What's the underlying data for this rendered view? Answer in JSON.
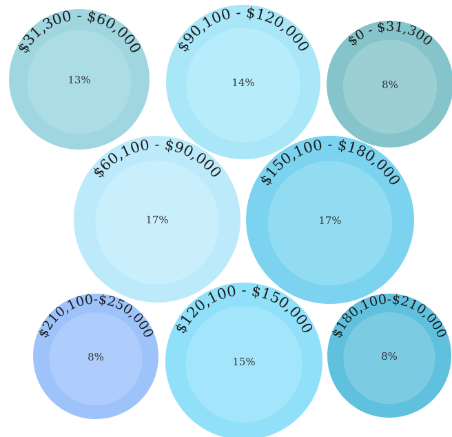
{
  "chart_data": {
    "type": "bubble",
    "title": "",
    "categories": [
      "$31,300 - $60,000",
      "$90,100 - $120,000",
      "$0 - $31,300",
      "$60,100 - $90,000",
      "$150,100 - $180,000",
      "$210,100-$250,000",
      "$120,100 - $150,000",
      "$180,100-$210,000"
    ],
    "values": [
      13,
      14,
      8,
      17,
      17,
      8,
      15,
      8
    ],
    "value_labels": [
      "13%",
      "14%",
      "8%",
      "17%",
      "17%",
      "8%",
      "15%",
      "8%"
    ],
    "unit": "%",
    "colors": {
      "$31,300 - $60,000": {
        "outer": "#9fd6e0",
        "inner": "#acdde4"
      },
      "$90,100 - $120,000": {
        "outer": "#a8e6f8",
        "inner": "#b7ecfb"
      },
      "$0 - $31,300": {
        "outer": "#86c4cb",
        "inner": "#9ccfd4"
      },
      "$60,100 - $90,000": {
        "outer": "#bdeafb",
        "inner": "#c9effc"
      },
      "$150,100 - $180,000": {
        "outer": "#7cd3ef",
        "inner": "#92dcf2"
      },
      "$210,100-$250,000": {
        "outer": "#9ec3fb",
        "inner": "#afcdfc"
      },
      "$120,100 - $150,000": {
        "outer": "#90e0f9",
        "inner": "#a3e6fb"
      },
      "$180,100-$210,000": {
        "outer": "#60c1de",
        "inner": "#7bcbe3"
      }
    }
  }
}
